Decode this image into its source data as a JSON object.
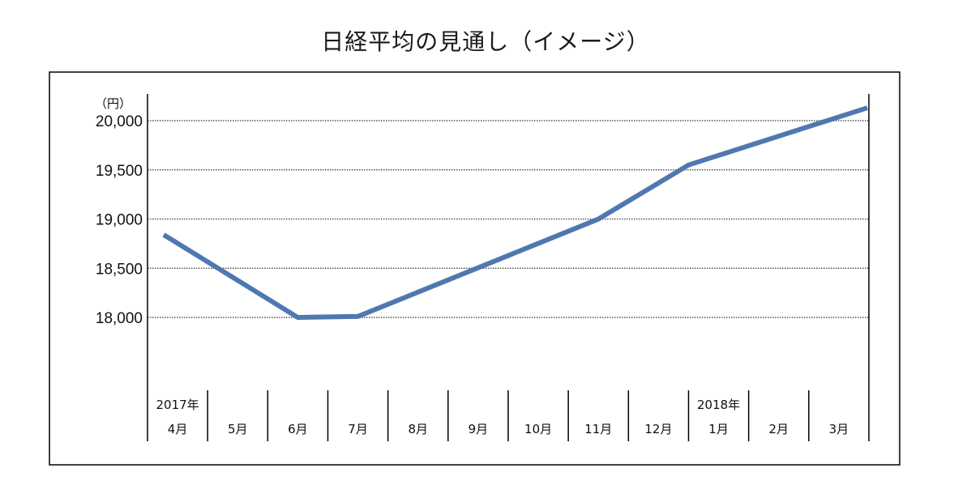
{
  "chart_data": {
    "type": "line",
    "title": "日経平均の見通し（イメージ）",
    "ylabel": "（円）",
    "yticks": [
      18000,
      18500,
      19000,
      19500,
      20000
    ],
    "ytick_labels": [
      "18,000",
      "18,500",
      "19,000",
      "19,500",
      "20,000"
    ],
    "ylim": [
      17300,
      20260
    ],
    "grid": true,
    "categories": [
      {
        "year": "2017年",
        "month": "4月"
      },
      {
        "year": "",
        "month": "5月"
      },
      {
        "year": "",
        "month": "6月"
      },
      {
        "year": "",
        "month": "7月"
      },
      {
        "year": "",
        "month": "8月"
      },
      {
        "year": "",
        "month": "9月"
      },
      {
        "year": "",
        "month": "10月"
      },
      {
        "year": "",
        "month": "11月"
      },
      {
        "year": "",
        "month": "12月"
      },
      {
        "year": "2018年",
        "month": "1月"
      },
      {
        "year": "",
        "month": "2月"
      },
      {
        "year": "",
        "month": "3月"
      }
    ],
    "series": [
      {
        "color": "#4f78b0",
        "points": [
          {
            "x": 0,
            "y": 18840
          },
          {
            "x": 2,
            "y": 18000
          },
          {
            "x": 3,
            "y": 18010
          },
          {
            "x": 7,
            "y": 19000
          },
          {
            "x": 9,
            "y": 19550
          },
          {
            "x": 11,
            "y": 20130
          }
        ]
      }
    ]
  }
}
